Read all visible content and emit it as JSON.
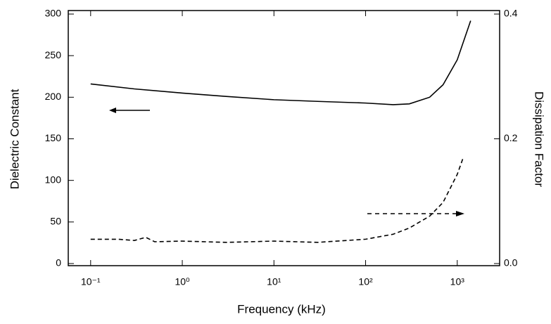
{
  "chart_data": {
    "type": "line",
    "x_label": "Frequency (kHz)",
    "y_label": "Dielectric Constant",
    "y2_label": "Dissipation Factor",
    "xscale": "log",
    "xlim": [
      0.057,
      2900
    ],
    "xticks": [
      {
        "value": 0.1,
        "label": "10⁻¹"
      },
      {
        "value": 1,
        "label": "10⁰"
      },
      {
        "value": 10,
        "label": "10¹"
      },
      {
        "value": 100,
        "label": "10²"
      },
      {
        "value": 1000,
        "label": "10³"
      }
    ],
    "ylim": [
      0,
      300
    ],
    "yticks": [
      0,
      50,
      100,
      150,
      200,
      250,
      300
    ],
    "y2lim": [
      0,
      0.4
    ],
    "y2ticks": [
      {
        "value": 0,
        "label": "0.0"
      },
      0.2,
      0.4
    ],
    "series": [
      {
        "color": "#000000",
        "dash": false,
        "x": [
          0.1,
          0.3,
          1,
          3,
          10,
          30,
          100,
          200,
          300,
          500,
          700,
          1000,
          1400
        ],
        "values": [
          216,
          210,
          205,
          201,
          197,
          195,
          193,
          191,
          192,
          200,
          215,
          245,
          292
        ]
      },
      {
        "color": "#000000",
        "dash": true,
        "axis": "y2",
        "x": [
          0.1,
          0.2,
          0.3,
          0.4,
          0.5,
          1,
          3,
          10,
          30,
          100,
          200,
          300,
          500,
          700,
          1000,
          1150
        ],
        "values": [
          0.039,
          0.039,
          0.037,
          0.042,
          0.035,
          0.036,
          0.034,
          0.036,
          0.034,
          0.039,
          0.047,
          0.057,
          0.076,
          0.098,
          0.143,
          0.168
        ]
      }
    ]
  }
}
